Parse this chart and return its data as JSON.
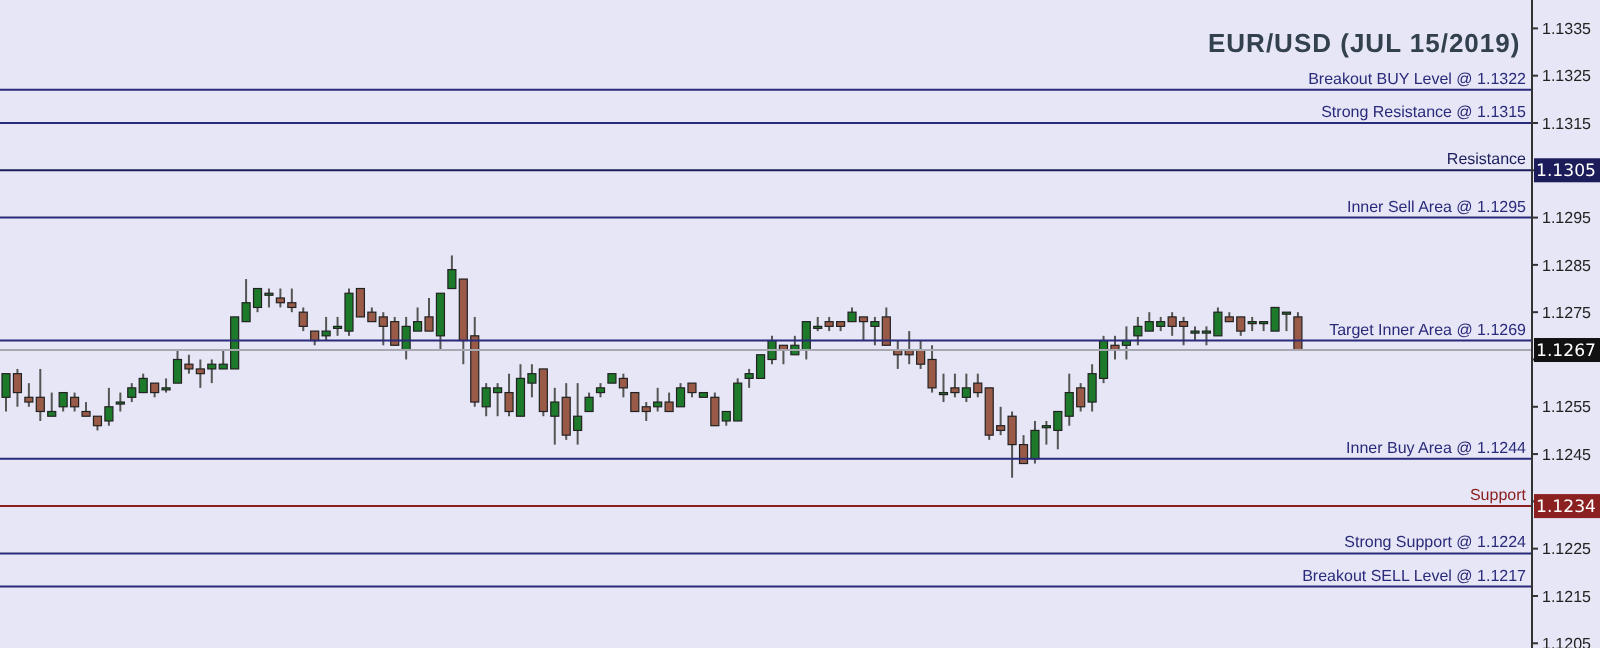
{
  "chart_data": {
    "type": "candlestick",
    "title": "EUR/USD (JUL 15/2019)",
    "categories": [
      null,
      null,
      null,
      null,
      null,
      null,
      null,
      null,
      null,
      null,
      null,
      null,
      null,
      null,
      null,
      null,
      null,
      null,
      null,
      null,
      null,
      null,
      null,
      null,
      null,
      null,
      null,
      null,
      null,
      null,
      null,
      null,
      null,
      null,
      null,
      null,
      null,
      null,
      null,
      null,
      null,
      null,
      null,
      null,
      null,
      null,
      null,
      null,
      null,
      null,
      null,
      null,
      null,
      null,
      null,
      null,
      null,
      null,
      null,
      null,
      null,
      null,
      null,
      null,
      null,
      null,
      null,
      null,
      null,
      null,
      null,
      null,
      null,
      null,
      null,
      null,
      null,
      null,
      null,
      null,
      null,
      null,
      null,
      null,
      null,
      null,
      null,
      null,
      null,
      null,
      null,
      null,
      null,
      null,
      null,
      null,
      null,
      null,
      null,
      null,
      null,
      null,
      null,
      null,
      null,
      null,
      null,
      null,
      null,
      null,
      null,
      null,
      null,
      null,
      null,
      null,
      null,
      null,
      null,
      null,
      null,
      null,
      null,
      null,
      null,
      null,
      null,
      null,
      null,
      null,
      null,
      null,
      null,
      null
    ],
    "ohlc": [
      [
        1.1257,
        1.1262,
        1.1254,
        1.1262
      ],
      [
        1.1262,
        1.1263,
        1.1255,
        1.1258
      ],
      [
        1.1257,
        1.126,
        1.1255,
        1.1256
      ],
      [
        1.1257,
        1.1263,
        1.1252,
        1.1254
      ],
      [
        1.1253,
        1.1258,
        1.1253,
        1.1254
      ],
      [
        1.1255,
        1.1258,
        1.1254,
        1.1258
      ],
      [
        1.1257,
        1.1258,
        1.1254,
        1.1255
      ],
      [
        1.1254,
        1.1256,
        1.1253,
        1.1253
      ],
      [
        1.1253,
        1.1253,
        1.125,
        1.1251
      ],
      [
        1.1252,
        1.1259,
        1.1251,
        1.1255
      ],
      [
        1.1256,
        1.1258,
        1.1254,
        1.1256
      ],
      [
        1.1257,
        1.126,
        1.1256,
        1.1259
      ],
      [
        1.1258,
        1.1262,
        1.1258,
        1.1261
      ],
      [
        1.126,
        1.126,
        1.1257,
        1.1258
      ],
      [
        1.1259,
        1.1261,
        1.1258,
        1.1259
      ],
      [
        1.126,
        1.1267,
        1.126,
        1.1265
      ],
      [
        1.1264,
        1.1266,
        1.1262,
        1.1263
      ],
      [
        1.1263,
        1.1265,
        1.1259,
        1.1262
      ],
      [
        1.1263,
        1.1265,
        1.126,
        1.1264
      ],
      [
        1.1263,
        1.1267,
        1.1263,
        1.1264
      ],
      [
        1.1263,
        1.1274,
        1.1263,
        1.1274
      ],
      [
        1.1273,
        1.1282,
        1.1273,
        1.1277
      ],
      [
        1.1276,
        1.128,
        1.1275,
        1.128
      ],
      [
        1.1279,
        1.128,
        1.1276,
        1.1279
      ],
      [
        1.1278,
        1.128,
        1.1276,
        1.1277
      ],
      [
        1.1277,
        1.128,
        1.1275,
        1.1276
      ],
      [
        1.1275,
        1.1276,
        1.1271,
        1.1272
      ],
      [
        1.1271,
        1.1271,
        1.1268,
        1.1269
      ],
      [
        1.127,
        1.1274,
        1.1269,
        1.1271
      ],
      [
        1.1272,
        1.1274,
        1.127,
        1.1272
      ],
      [
        1.1271,
        1.128,
        1.127,
        1.1279
      ],
      [
        1.128,
        1.128,
        1.1274,
        1.1274
      ],
      [
        1.1275,
        1.1276,
        1.1273,
        1.1273
      ],
      [
        1.1274,
        1.1275,
        1.1268,
        1.1272
      ],
      [
        1.1273,
        1.1274,
        1.1268,
        1.1268
      ],
      [
        1.1267,
        1.1274,
        1.1265,
        1.1272
      ],
      [
        1.1271,
        1.1276,
        1.1271,
        1.1273
      ],
      [
        1.1274,
        1.1278,
        1.1271,
        1.1271
      ],
      [
        1.127,
        1.1279,
        1.1267,
        1.1279
      ],
      [
        1.128,
        1.1287,
        1.128,
        1.1284
      ],
      [
        1.1282,
        1.1282,
        1.1264,
        1.1269
      ],
      [
        1.127,
        1.1274,
        1.1255,
        1.1256
      ],
      [
        1.1255,
        1.126,
        1.1253,
        1.1259
      ],
      [
        1.1258,
        1.126,
        1.1253,
        1.1259
      ],
      [
        1.1258,
        1.1262,
        1.1253,
        1.1254
      ],
      [
        1.1253,
        1.1264,
        1.1253,
        1.1261
      ],
      [
        1.126,
        1.1264,
        1.1257,
        1.1262
      ],
      [
        1.1263,
        1.1263,
        1.1253,
        1.1254
      ],
      [
        1.1253,
        1.1259,
        1.1247,
        1.1256
      ],
      [
        1.1257,
        1.126,
        1.1248,
        1.1249
      ],
      [
        1.125,
        1.126,
        1.1247,
        1.1253
      ],
      [
        1.1254,
        1.1258,
        1.1254,
        1.1257
      ],
      [
        1.1258,
        1.126,
        1.1257,
        1.1259
      ],
      [
        1.126,
        1.1262,
        1.126,
        1.1262
      ],
      [
        1.1261,
        1.1262,
        1.1257,
        1.1259
      ],
      [
        1.1258,
        1.1258,
        1.1254,
        1.1254
      ],
      [
        1.1255,
        1.1256,
        1.1252,
        1.1254
      ],
      [
        1.1255,
        1.1259,
        1.1254,
        1.1256
      ],
      [
        1.1256,
        1.1258,
        1.1254,
        1.1254
      ],
      [
        1.1255,
        1.126,
        1.1255,
        1.1259
      ],
      [
        1.126,
        1.126,
        1.1257,
        1.1258
      ],
      [
        1.1257,
        1.1258,
        1.1257,
        1.1258
      ],
      [
        1.1257,
        1.1258,
        1.1251,
        1.1251
      ],
      [
        1.1252,
        1.1254,
        1.1251,
        1.1254
      ],
      [
        1.1252,
        1.1261,
        1.1252,
        1.126
      ],
      [
        1.1261,
        1.1263,
        1.1259,
        1.1262
      ],
      [
        1.1261,
        1.1266,
        1.1261,
        1.1266
      ],
      [
        1.1265,
        1.127,
        1.1264,
        1.1269
      ],
      [
        1.1268,
        1.1268,
        1.1264,
        1.1267
      ],
      [
        1.1266,
        1.127,
        1.1266,
        1.1268
      ],
      [
        1.1267,
        1.1273,
        1.1265,
        1.1273
      ],
      [
        1.1272,
        1.1274,
        1.1271,
        1.1272
      ],
      [
        1.1273,
        1.1274,
        1.1271,
        1.1272
      ],
      [
        1.1273,
        1.1273,
        1.1271,
        1.1272
      ],
      [
        1.1273,
        1.1276,
        1.1273,
        1.1275
      ],
      [
        1.1274,
        1.1274,
        1.1269,
        1.1273
      ],
      [
        1.1272,
        1.1274,
        1.1268,
        1.1273
      ],
      [
        1.1274,
        1.1276,
        1.1268,
        1.1268
      ],
      [
        1.1267,
        1.1269,
        1.1263,
        1.1266
      ],
      [
        1.1267,
        1.1271,
        1.1264,
        1.1266
      ],
      [
        1.1267,
        1.1269,
        1.1263,
        1.1264
      ],
      [
        1.1265,
        1.1268,
        1.1258,
        1.1259
      ],
      [
        1.1258,
        1.1262,
        1.1256,
        1.1258
      ],
      [
        1.1259,
        1.1262,
        1.1257,
        1.1258
      ],
      [
        1.1257,
        1.1262,
        1.1256,
        1.1259
      ],
      [
        1.126,
        1.1262,
        1.1257,
        1.1258
      ],
      [
        1.1259,
        1.1259,
        1.1248,
        1.1249
      ],
      [
        1.1251,
        1.1255,
        1.1249,
        1.125
      ],
      [
        1.1253,
        1.1254,
        1.124,
        1.1247
      ],
      [
        1.1247,
        1.1249,
        1.1243,
        1.1243
      ],
      [
        1.1244,
        1.1252,
        1.1243,
        1.125
      ],
      [
        1.1251,
        1.1252,
        1.1247,
        1.1251
      ],
      [
        1.125,
        1.1254,
        1.1246,
        1.1254
      ],
      [
        1.1253,
        1.1262,
        1.1251,
        1.1258
      ],
      [
        1.1259,
        1.126,
        1.1254,
        1.1255
      ],
      [
        1.1256,
        1.1264,
        1.1254,
        1.1262
      ],
      [
        1.1261,
        1.127,
        1.126,
        1.1269
      ],
      [
        1.1268,
        1.127,
        1.1265,
        1.1267
      ],
      [
        1.1268,
        1.1272,
        1.1265,
        1.1269
      ],
      [
        1.127,
        1.1274,
        1.1268,
        1.1272
      ],
      [
        1.1271,
        1.1275,
        1.1271,
        1.1273
      ],
      [
        1.1272,
        1.1274,
        1.1271,
        1.1273
      ],
      [
        1.1274,
        1.1275,
        1.127,
        1.1272
      ],
      [
        1.1273,
        1.1274,
        1.1268,
        1.1272
      ],
      [
        1.1271,
        1.1272,
        1.1269,
        1.1271
      ],
      [
        1.1271,
        1.1272,
        1.1268,
        1.1271
      ],
      [
        1.127,
        1.1276,
        1.127,
        1.1275
      ],
      [
        1.1274,
        1.1275,
        1.1273,
        1.1273
      ],
      [
        1.1274,
        1.1274,
        1.127,
        1.1271
      ],
      [
        1.1273,
        1.1274,
        1.1271,
        1.1273
      ],
      [
        1.1273,
        1.1273,
        1.1271,
        1.1273
      ],
      [
        1.1271,
        1.1276,
        1.1271,
        1.1276
      ],
      [
        1.1275,
        1.1275,
        1.1271,
        1.1275
      ],
      [
        1.1274,
        1.1275,
        1.1267,
        1.1267
      ],
      null,
      null,
      null,
      null,
      null,
      null,
      null,
      null,
      null,
      null,
      null,
      null,
      null,
      null,
      null,
      null,
      null,
      null,
      null,
      null
    ],
    "ylim": [
      1.1204,
      1.1341
    ],
    "yticks": [
      1.1205,
      1.1215,
      1.1225,
      {
        "value": 1.1235,
        "label": null
      },
      1.1245,
      1.1255,
      {
        "value": 1.1265,
        "label": null
      },
      1.1275,
      1.1285,
      1.1295,
      {
        "value": 1.1305,
        "label": null
      },
      1.1315,
      1.1325,
      1.1335
    ],
    "tick_labels": "y",
    "grid": false,
    "legend": false,
    "ref_lines": [
      {
        "axis": "y",
        "value": 1.1322,
        "label": "Breakout BUY Level @ 1.1322",
        "color": "#2a2a7a"
      },
      {
        "axis": "y",
        "value": 1.1315,
        "label": "Strong Resistance @  1.1315",
        "color": "#2a2a7a"
      },
      {
        "axis": "y",
        "value": 1.1305,
        "label": "Resistance",
        "color": "#1c1c5a"
      },
      {
        "axis": "y",
        "value": 1.1295,
        "label": "Inner Sell Area @ 1.1295",
        "color": "#2a2a7a"
      },
      {
        "axis": "y",
        "value": 1.1269,
        "label": "Target Inner Area @ 1.1269",
        "color": "#2a2a7a"
      },
      {
        "axis": "y",
        "value": 1.1267,
        "label": null,
        "color": "#a8a8b0"
      },
      {
        "axis": "y",
        "value": 1.1244,
        "label": "Inner Buy Area  @ 1.1244",
        "color": "#2a2a7a"
      },
      {
        "axis": "y",
        "value": 1.1234,
        "label": "Support",
        "color": "#8b2020"
      },
      {
        "axis": "y",
        "value": 1.1224,
        "label": "Strong Support  @  1.1224",
        "color": "#2a2a7a"
      },
      {
        "axis": "y",
        "value": 1.1217,
        "label": "Breakout SELL Level  @ 1.1217",
        "color": "#2a2a7a"
      }
    ],
    "annotations": [
      {
        "text": "1.1267",
        "y": 1.1267
      },
      {
        "text": "1.1305",
        "y": 1.1305
      },
      {
        "text": "1.1234",
        "y": 1.1234
      }
    ]
  }
}
